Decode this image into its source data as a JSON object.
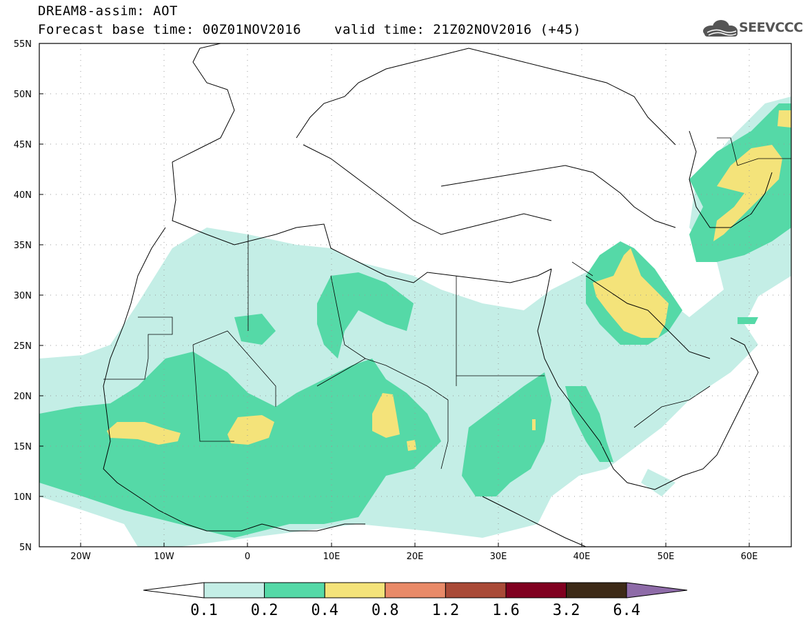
{
  "header": {
    "title": "DREAM8-assim: AOT",
    "base_time": "Forecast base time: 00Z01NOV2016",
    "valid_time": "valid time: 21Z02NOV2016 (+45)",
    "logo_text": "SEEVCCC",
    "logo_icon": "cloud-logo-icon"
  },
  "map": {
    "lat_labels": [
      "55N",
      "50N",
      "45N",
      "40N",
      "35N",
      "30N",
      "25N",
      "20N",
      "15N",
      "10N",
      "5N"
    ],
    "lon_labels": [
      "20W",
      "10W",
      "0",
      "10E",
      "20E",
      "30E",
      "40E",
      "50E",
      "60E"
    ],
    "colors": {
      "0.1-0.2": "#c4eee6",
      "0.2-0.4": "#55d9a7",
      "0.4-0.8": "#f4e37a"
    }
  },
  "colorbar": {
    "labels": [
      "0.1",
      "0.2",
      "0.4",
      "0.8",
      "1.2",
      "1.6",
      "3.2",
      "6.4"
    ],
    "colors": [
      "#c4eee6",
      "#55d9a7",
      "#f4e37a",
      "#e98a68",
      "#a94a37",
      "#800020",
      "#3d2a17"
    ],
    "over_color": "#8e6ba8",
    "under_color": "#ffffff"
  }
}
